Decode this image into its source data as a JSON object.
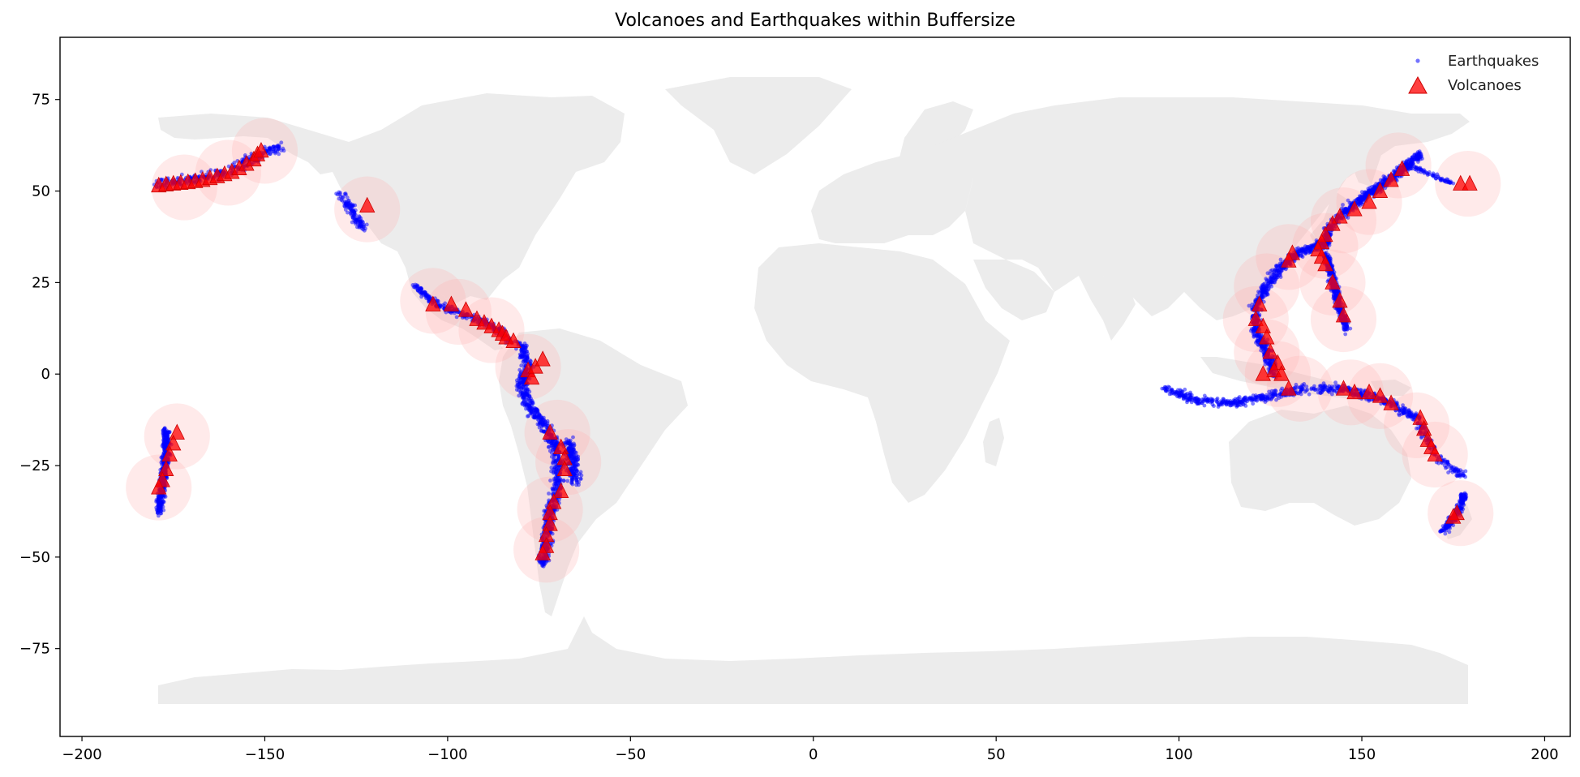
{
  "chart_data": {
    "type": "scatter",
    "title": "Volcanoes and Earthquakes within Buffersize",
    "xlabel": "",
    "ylabel": "",
    "xlim": [
      -206,
      207
    ],
    "ylim": [
      -99,
      92
    ],
    "xticks": [
      -200,
      -150,
      -100,
      -50,
      0,
      50,
      100,
      150,
      200
    ],
    "yticks": [
      75,
      50,
      25,
      0,
      -25,
      -50,
      -75
    ],
    "grid": false,
    "legend_position": "top-right",
    "colors": {
      "land": "#ececec",
      "buffer": "#ffb3b3",
      "earthquakes": "#0000ff",
      "volcanoes": "#ff0000",
      "volcano_edge": "#cc0000"
    },
    "series": [
      {
        "name": "Earthquakes",
        "marker": "dot",
        "segments": [
          {
            "path": [
              [
                -179,
                52
              ],
              [
                -170,
                53
              ],
              [
                -160,
                55
              ],
              [
                -153,
                59
              ],
              [
                -149,
                61
              ],
              [
                -145,
                62
              ]
            ],
            "n": 300,
            "spread": 2.0
          },
          {
            "path": [
              [
                -130,
                50
              ],
              [
                -127,
                46
              ],
              [
                -125,
                42
              ],
              [
                -123,
                40
              ]
            ],
            "n": 120,
            "spread": 2.0
          },
          {
            "path": [
              [
                -109,
                24
              ],
              [
                -104,
                20
              ],
              [
                -98,
                17
              ],
              [
                -92,
                15
              ],
              [
                -86,
                12
              ],
              [
                -83,
                9
              ]
            ],
            "n": 260,
            "spread": 1.5
          },
          {
            "path": [
              [
                -80,
                8
              ],
              [
                -78,
                2
              ],
              [
                -80,
                -3
              ],
              [
                -77,
                -10
              ],
              [
                -72,
                -16
              ],
              [
                -70,
                -22
              ],
              [
                -70,
                -30
              ],
              [
                -72,
                -38
              ],
              [
                -73,
                -46
              ],
              [
                -74,
                -52
              ]
            ],
            "n": 900,
            "spread": 2.2
          },
          {
            "path": [
              [
                -67,
                -18
              ],
              [
                -66,
                -24
              ],
              [
                -65,
                -29
              ]
            ],
            "n": 200,
            "spread": 2.5
          },
          {
            "path": [
              [
                -177,
                -15
              ],
              [
                -177,
                -22
              ],
              [
                -178,
                -30
              ],
              [
                -179,
                -38
              ]
            ],
            "n": 420,
            "spread": 1.5
          },
          {
            "path": [
              [
                166,
                60
              ],
              [
                160,
                55
              ],
              [
                153,
                50
              ],
              [
                146,
                45
              ],
              [
                141,
                40
              ],
              [
                140,
                35
              ]
            ],
            "n": 650,
            "spread": 1.8
          },
          {
            "path": [
              [
                140,
                33
              ],
              [
                142,
                26
              ],
              [
                144,
                18
              ],
              [
                146,
                12
              ]
            ],
            "n": 400,
            "spread": 1.5
          },
          {
            "path": [
              [
                140,
                36
              ],
              [
                135,
                34
              ],
              [
                131,
                32
              ],
              [
                127,
                28
              ],
              [
                124,
                24
              ],
              [
                121,
                19
              ],
              [
                121,
                12
              ],
              [
                124,
                6
              ],
              [
                126,
                0
              ]
            ],
            "n": 650,
            "spread": 2.0
          },
          {
            "path": [
              [
                96,
                -4
              ],
              [
                105,
                -7
              ],
              [
                115,
                -8
              ],
              [
                125,
                -6
              ],
              [
                135,
                -4
              ],
              [
                145,
                -4
              ],
              [
                152,
                -6
              ],
              [
                158,
                -8
              ],
              [
                165,
                -12
              ],
              [
                168,
                -18
              ],
              [
                172,
                -24
              ],
              [
                178,
                -28
              ]
            ],
            "n": 800,
            "spread": 1.8
          },
          {
            "path": [
              [
                178,
                -33
              ],
              [
                176,
                -38
              ],
              [
                172,
                -43
              ]
            ],
            "n": 200,
            "spread": 1.5
          },
          {
            "path": [
              [
                162,
                57
              ],
              [
                168,
                55
              ],
              [
                175,
                52
              ]
            ],
            "n": 80,
            "spread": 0.8
          }
        ]
      },
      {
        "name": "Volcanoes",
        "marker": "triangle",
        "points": [
          [
            -179,
            51.5
          ],
          [
            -177,
            51.8
          ],
          [
            -175,
            52
          ],
          [
            -173,
            52.2
          ],
          [
            -171,
            52.4
          ],
          [
            -169,
            52.7
          ],
          [
            -167,
            53
          ],
          [
            -165,
            53.5
          ],
          [
            -163,
            54
          ],
          [
            -161,
            54.6
          ],
          [
            -159,
            55.2
          ],
          [
            -157,
            56.2
          ],
          [
            -155,
            57.4
          ],
          [
            -153,
            58.6
          ],
          [
            -152,
            60
          ],
          [
            -151,
            61
          ],
          [
            -122,
            46
          ],
          [
            -104,
            19
          ],
          [
            -99,
            19
          ],
          [
            -95,
            17.5
          ],
          [
            -92,
            15
          ],
          [
            -90,
            14
          ],
          [
            -88,
            13
          ],
          [
            -86,
            12
          ],
          [
            -85,
            11
          ],
          [
            -84,
            10
          ],
          [
            -82,
            9
          ],
          [
            -78,
            1
          ],
          [
            -77,
            -1
          ],
          [
            -76,
            2
          ],
          [
            -74,
            4
          ],
          [
            -72,
            -16
          ],
          [
            -69,
            -20
          ],
          [
            -68,
            -23
          ],
          [
            -68,
            -26
          ],
          [
            -69,
            -32
          ],
          [
            -71,
            -35
          ],
          [
            -72,
            -38
          ],
          [
            -72,
            -41
          ],
          [
            -73,
            -44
          ],
          [
            -73,
            -47
          ],
          [
            -74,
            -49
          ],
          [
            -174,
            -16
          ],
          [
            -175,
            -19
          ],
          [
            -176,
            -22
          ],
          [
            -177,
            -26
          ],
          [
            -178,
            -29
          ],
          [
            -179,
            -31
          ],
          [
            161,
            56
          ],
          [
            158,
            53
          ],
          [
            155,
            50
          ],
          [
            152,
            47
          ],
          [
            148,
            45
          ],
          [
            144,
            43
          ],
          [
            142,
            41
          ],
          [
            140,
            38
          ],
          [
            139,
            36
          ],
          [
            138,
            34
          ],
          [
            139,
            32
          ],
          [
            140,
            30
          ],
          [
            142,
            25
          ],
          [
            144,
            20
          ],
          [
            145,
            16
          ],
          [
            131,
            33
          ],
          [
            130,
            31
          ],
          [
            122,
            19
          ],
          [
            121,
            15
          ],
          [
            123,
            13
          ],
          [
            124,
            10
          ],
          [
            125,
            6
          ],
          [
            127,
            3
          ],
          [
            126,
            1
          ],
          [
            128,
            0
          ],
          [
            123,
            0
          ],
          [
            130,
            -4
          ],
          [
            145,
            -4
          ],
          [
            148,
            -5
          ],
          [
            152,
            -5
          ],
          [
            155,
            -6
          ],
          [
            158,
            -8
          ],
          [
            166,
            -12
          ],
          [
            167,
            -15
          ],
          [
            168,
            -18
          ],
          [
            169,
            -20
          ],
          [
            170,
            -22
          ],
          [
            176,
            -38
          ],
          [
            175,
            -39
          ],
          [
            177,
            52
          ],
          [
            179.5,
            52
          ]
        ]
      }
    ],
    "buffers": [
      [
        -172,
        51
      ],
      [
        -160,
        55
      ],
      [
        -150,
        61
      ],
      [
        -122,
        45
      ],
      [
        -104,
        20
      ],
      [
        -97,
        17
      ],
      [
        -88,
        12
      ],
      [
        -78,
        2
      ],
      [
        -70,
        -16
      ],
      [
        -67,
        -24
      ],
      [
        -72,
        -37
      ],
      [
        -73,
        -48
      ],
      [
        -174,
        -17
      ],
      [
        -179,
        -31
      ],
      [
        179,
        52
      ],
      [
        160,
        57
      ],
      [
        152,
        47
      ],
      [
        145,
        42
      ],
      [
        140,
        35
      ],
      [
        142,
        25
      ],
      [
        145,
        15
      ],
      [
        130,
        32
      ],
      [
        124,
        24
      ],
      [
        121,
        15
      ],
      [
        124,
        6
      ],
      [
        127,
        0
      ],
      [
        133,
        -4
      ],
      [
        147,
        -5
      ],
      [
        155,
        -6
      ],
      [
        165,
        -14
      ],
      [
        170,
        -22
      ],
      [
        177,
        -38
      ]
    ]
  }
}
